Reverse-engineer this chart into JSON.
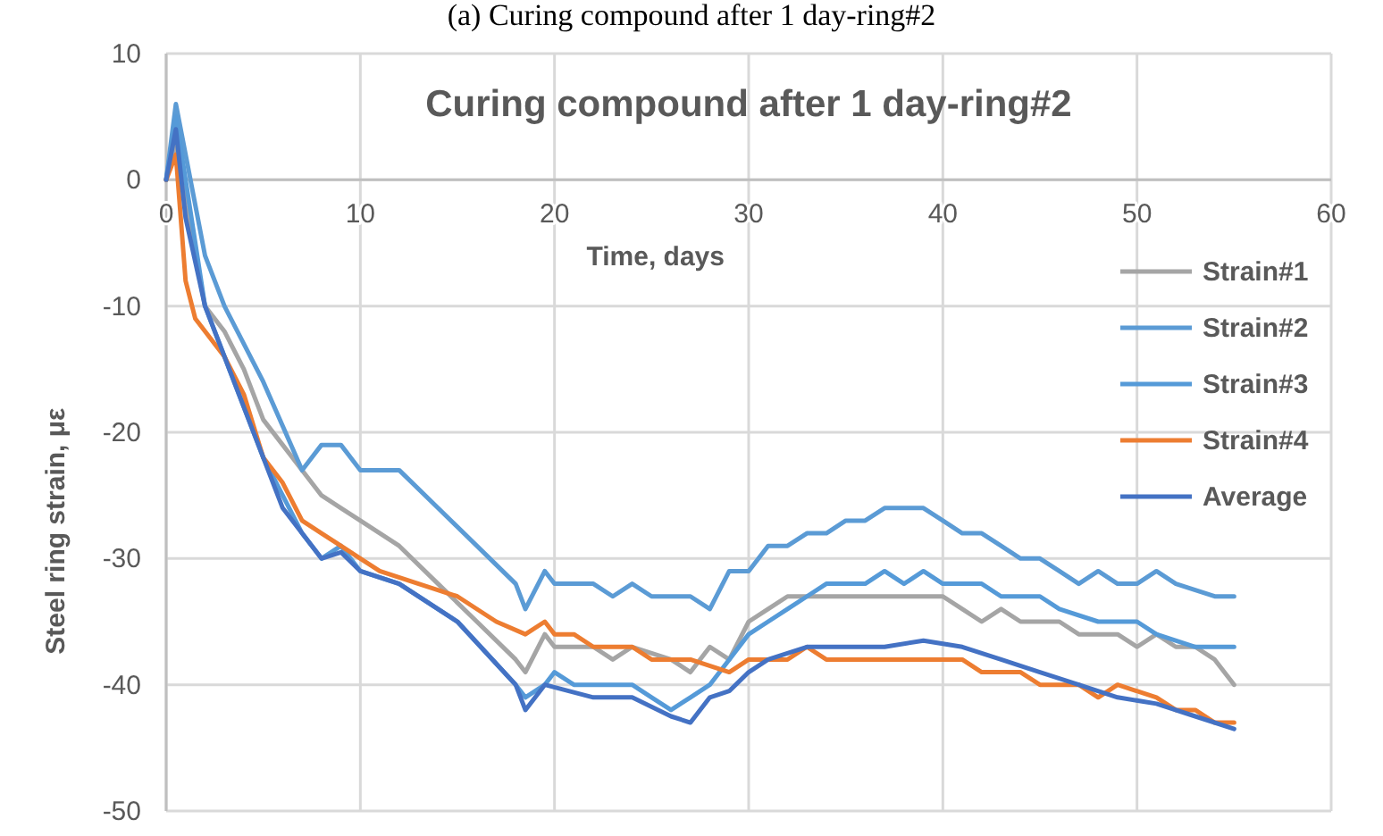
{
  "chart_data": {
    "type": "line",
    "title": "Curing compound after 1 day-ring#2",
    "xlabel": "Time, days",
    "ylabel": "Steel ring strain, με",
    "annotations": [
      "(a) Curing compound after 1 day-ring#2"
    ],
    "xlim": [
      0,
      60
    ],
    "xticks": [
      0,
      10,
      20,
      30,
      40,
      50,
      60
    ],
    "ylim": [
      -50,
      10
    ],
    "yticks": [
      -50,
      -40,
      -30,
      -20,
      -10,
      0,
      10
    ],
    "grid": true,
    "legend": "right",
    "marker": "none",
    "line_style": "solid",
    "series": [
      {
        "name": "Strain#1",
        "color": "#a5a5a5",
        "x": [
          0,
          0.5,
          1,
          2,
          3,
          4,
          5,
          6,
          7,
          8,
          9,
          10,
          12,
          14,
          16,
          18,
          18.5,
          19.5,
          20,
          22,
          23,
          24,
          26,
          27,
          28,
          29,
          30,
          31,
          32,
          34,
          40,
          41,
          42,
          43,
          44,
          46,
          47,
          49,
          50,
          51,
          52,
          53,
          54,
          55
        ],
        "values": [
          0,
          3,
          -2,
          -10,
          -12,
          -15,
          -19,
          -21,
          -23,
          -25,
          -26,
          -27,
          -29,
          -32,
          -35,
          -38,
          -39,
          -36,
          -37,
          -37,
          -38,
          -37,
          -38,
          -39,
          -37,
          -38,
          -35,
          -34,
          -33,
          -33,
          -33,
          -34,
          -35,
          -34,
          -35,
          -35,
          -36,
          -36,
          -37,
          -36,
          -37,
          -37,
          -38,
          -40
        ]
      },
      {
        "name": "Strain#2",
        "color": "#5b9bd5",
        "x": [
          0,
          0.5,
          1,
          2,
          3,
          5,
          7,
          8,
          9,
          10,
          12,
          14,
          18,
          18.5,
          19.5,
          20,
          22,
          23,
          24,
          25,
          27,
          28,
          29,
          30,
          31,
          32,
          33,
          34,
          35,
          36,
          37,
          39,
          40,
          41,
          42,
          43,
          44,
          45,
          46,
          47,
          48,
          49,
          50,
          51,
          52,
          54,
          55
        ],
        "values": [
          0,
          6,
          2,
          -6,
          -10,
          -16,
          -23,
          -21,
          -21,
          -23,
          -23,
          -26,
          -32,
          -34,
          -31,
          -32,
          -32,
          -33,
          -32,
          -33,
          -33,
          -34,
          -31,
          -31,
          -29,
          -29,
          -28,
          -28,
          -27,
          -27,
          -26,
          -26,
          -27,
          -28,
          -28,
          -29,
          -30,
          -30,
          -31,
          -32,
          -31,
          -32,
          -32,
          -31,
          -32,
          -33,
          -33
        ]
      },
      {
        "name": "Strain#3",
        "color": "#559ad8",
        "x": [
          0,
          0.5,
          1,
          2,
          3,
          5,
          6,
          7,
          8,
          9,
          10,
          12,
          15,
          18,
          18.5,
          19.5,
          20,
          21,
          24,
          25,
          26,
          27,
          28,
          29,
          30,
          31,
          32,
          33,
          34,
          36,
          37,
          38,
          39,
          40,
          42,
          43,
          45,
          46,
          48,
          50,
          51,
          53,
          55
        ],
        "values": [
          0,
          5,
          0,
          -10,
          -14,
          -22,
          -25,
          -28,
          -30,
          -29,
          -31,
          -32,
          -35,
          -40,
          -41,
          -40,
          -39,
          -40,
          -40,
          -41,
          -42,
          -41,
          -40,
          -38,
          -36,
          -35,
          -34,
          -33,
          -32,
          -32,
          -31,
          -32,
          -31,
          -32,
          -32,
          -33,
          -33,
          -34,
          -35,
          -35,
          -36,
          -37,
          -37
        ]
      },
      {
        "name": "Strain#4",
        "color": "#ed7d31",
        "x": [
          0,
          0.5,
          1,
          1.5,
          3,
          4,
          5,
          6,
          7,
          8,
          9,
          10,
          11,
          13,
          15,
          17,
          18.5,
          19.5,
          20,
          21,
          22,
          24,
          25,
          27,
          29,
          30,
          32,
          33,
          34,
          41,
          42,
          44,
          45,
          47,
          48,
          49,
          51,
          52,
          53,
          54,
          55
        ],
        "values": [
          0,
          2,
          -8,
          -11,
          -14,
          -17,
          -22,
          -24,
          -27,
          -28,
          -29,
          -30,
          -31,
          -32,
          -33,
          -35,
          -36,
          -35,
          -36,
          -36,
          -37,
          -37,
          -38,
          -38,
          -39,
          -38,
          -38,
          -37,
          -38,
          -38,
          -39,
          -39,
          -40,
          -40,
          -41,
          -40,
          -41,
          -42,
          -42,
          -43,
          -43
        ]
      },
      {
        "name": "Average",
        "color": "#4472c4",
        "x": [
          0,
          0.5,
          1,
          2,
          3,
          5,
          6,
          7,
          8,
          9,
          10,
          12,
          15,
          18,
          18.5,
          19.5,
          22,
          24,
          26,
          27,
          28,
          29,
          30,
          31,
          33,
          35,
          37,
          39,
          41,
          43,
          45,
          47,
          49,
          51,
          53,
          55
        ],
        "values": [
          0,
          4,
          -3,
          -10,
          -14,
          -22,
          -26,
          -28,
          -30,
          -29.5,
          -31,
          -32,
          -35,
          -40,
          -42,
          -40,
          -41,
          -41,
          -42.5,
          -43,
          -41,
          -40.5,
          -39,
          -38,
          -37,
          -37,
          -37,
          -36.5,
          -37,
          -38,
          -39,
          -40,
          -41,
          -41.5,
          -42.5,
          -43.5
        ]
      }
    ]
  }
}
